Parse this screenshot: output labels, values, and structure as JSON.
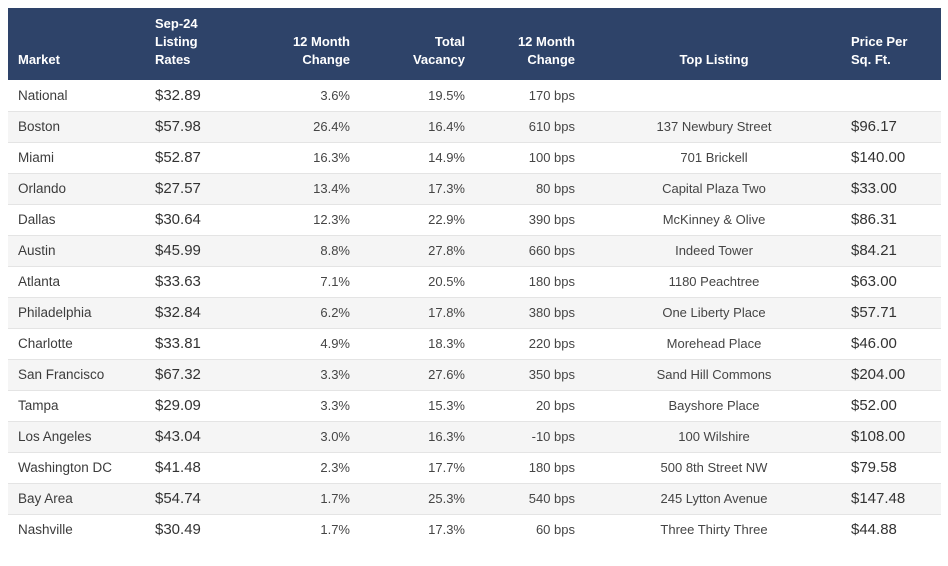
{
  "colors": {
    "header_bg": "#2e4369",
    "header_text": "#ffffff",
    "row_alt_bg": "#f5f5f5",
    "row_border": "#e4e4e4",
    "body_text": "#454545"
  },
  "table": {
    "columns": [
      {
        "label": "Market"
      },
      {
        "label": "Sep-24 Listing Rates"
      },
      {
        "label": "12 Month Change"
      },
      {
        "label": "Total Vacancy"
      },
      {
        "label": "12 Month Change"
      },
      {
        "label": "Top Listing"
      },
      {
        "label": "Price Per Sq. Ft."
      }
    ],
    "rows": [
      {
        "market": "National",
        "rate": "$32.89",
        "change": "3.6%",
        "vacancy": "19.5%",
        "vac_change": "170 bps",
        "top_listing": "",
        "price_psf": ""
      },
      {
        "market": "Boston",
        "rate": "$57.98",
        "change": "26.4%",
        "vacancy": "16.4%",
        "vac_change": "610 bps",
        "top_listing": "137 Newbury Street",
        "price_psf": "$96.17"
      },
      {
        "market": "Miami",
        "rate": "$52.87",
        "change": "16.3%",
        "vacancy": "14.9%",
        "vac_change": "100 bps",
        "top_listing": "701 Brickell",
        "price_psf": "$140.00"
      },
      {
        "market": "Orlando",
        "rate": "$27.57",
        "change": "13.4%",
        "vacancy": "17.3%",
        "vac_change": "80 bps",
        "top_listing": "Capital Plaza Two",
        "price_psf": "$33.00"
      },
      {
        "market": "Dallas",
        "rate": "$30.64",
        "change": "12.3%",
        "vacancy": "22.9%",
        "vac_change": "390 bps",
        "top_listing": "McKinney & Olive",
        "price_psf": "$86.31"
      },
      {
        "market": "Austin",
        "rate": "$45.99",
        "change": "8.8%",
        "vacancy": "27.8%",
        "vac_change": "660 bps",
        "top_listing": "Indeed Tower",
        "price_psf": "$84.21"
      },
      {
        "market": "Atlanta",
        "rate": "$33.63",
        "change": "7.1%",
        "vacancy": "20.5%",
        "vac_change": "180 bps",
        "top_listing": "1180 Peachtree",
        "price_psf": "$63.00"
      },
      {
        "market": "Philadelphia",
        "rate": "$32.84",
        "change": "6.2%",
        "vacancy": "17.8%",
        "vac_change": "380 bps",
        "top_listing": "One Liberty Place",
        "price_psf": "$57.71"
      },
      {
        "market": "Charlotte",
        "rate": "$33.81",
        "change": "4.9%",
        "vacancy": "18.3%",
        "vac_change": "220 bps",
        "top_listing": "Morehead Place",
        "price_psf": "$46.00"
      },
      {
        "market": "San Francisco",
        "rate": "$67.32",
        "change": "3.3%",
        "vacancy": "27.6%",
        "vac_change": "350 bps",
        "top_listing": "Sand Hill Commons",
        "price_psf": "$204.00"
      },
      {
        "market": "Tampa",
        "rate": "$29.09",
        "change": "3.3%",
        "vacancy": "15.3%",
        "vac_change": "20 bps",
        "top_listing": "Bayshore Place",
        "price_psf": "$52.00"
      },
      {
        "market": "Los Angeles",
        "rate": "$43.04",
        "change": "3.0%",
        "vacancy": "16.3%",
        "vac_change": "-10 bps",
        "top_listing": "100 Wilshire",
        "price_psf": "$108.00"
      },
      {
        "market": "Washington DC",
        "rate": "$41.48",
        "change": "2.3%",
        "vacancy": "17.7%",
        "vac_change": "180 bps",
        "top_listing": "500 8th Street NW",
        "price_psf": "$79.58"
      },
      {
        "market": "Bay Area",
        "rate": "$54.74",
        "change": "1.7%",
        "vacancy": "25.3%",
        "vac_change": "540 bps",
        "top_listing": "245 Lytton Avenue",
        "price_psf": "$147.48"
      },
      {
        "market": "Nashville",
        "rate": "$30.49",
        "change": "1.7%",
        "vacancy": "17.3%",
        "vac_change": "60 bps",
        "top_listing": "Three Thirty Three",
        "price_psf": "$44.88"
      }
    ]
  }
}
